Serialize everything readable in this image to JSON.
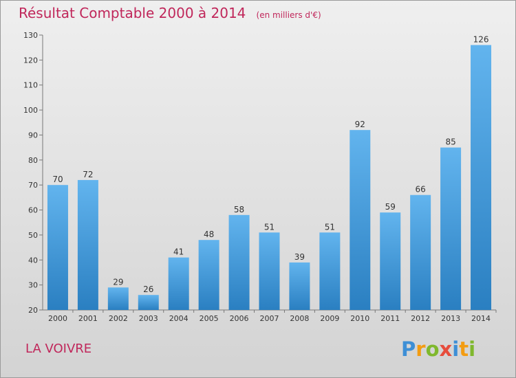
{
  "title": "Résultat Comptable 2000 à 2014",
  "subtitle": "(en milliers d'€)",
  "commune": "LA VOIVRE",
  "logo": {
    "text": "Proxiti",
    "letters": [
      {
        "char": "P",
        "color": "#3d8fd6"
      },
      {
        "char": "r",
        "color": "#f39c12"
      },
      {
        "char": "o",
        "color": "#7fb82d"
      },
      {
        "char": "x",
        "color": "#e74c3c"
      },
      {
        "char": "i",
        "color": "#3d8fd6"
      },
      {
        "char": "t",
        "color": "#f39c12"
      },
      {
        "char": "i",
        "color": "#7fb82d"
      }
    ]
  },
  "colors": {
    "title": "#c0265a",
    "bar_top": "#62b4ee",
    "bar_bottom": "#2a7fc1"
  },
  "chart_data": {
    "type": "bar",
    "title": "Résultat Comptable 2000 à 2014",
    "subtitle": "(en milliers d'€)",
    "categories": [
      "2000",
      "2001",
      "2002",
      "2003",
      "2004",
      "2005",
      "2006",
      "2007",
      "2008",
      "2009",
      "2010",
      "2011",
      "2012",
      "2013",
      "2014"
    ],
    "values": [
      70,
      72,
      29,
      26,
      41,
      48,
      58,
      51,
      39,
      51,
      92,
      59,
      66,
      85,
      126
    ],
    "ylim": [
      20,
      130
    ],
    "yticks": [
      20,
      30,
      40,
      50,
      60,
      70,
      80,
      90,
      100,
      110,
      120,
      130
    ],
    "xlabel": "",
    "ylabel": "",
    "grid": false,
    "data_labels": true
  }
}
